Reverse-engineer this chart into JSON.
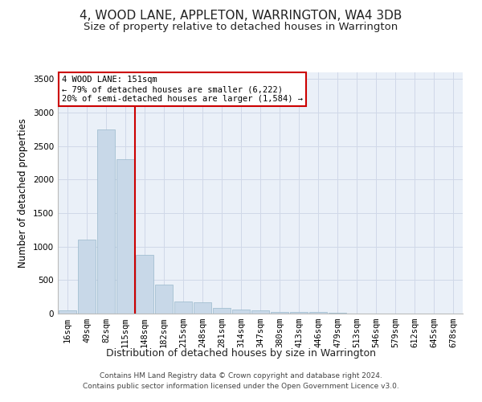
{
  "title": "4, WOOD LANE, APPLETON, WARRINGTON, WA4 3DB",
  "subtitle": "Size of property relative to detached houses in Warrington",
  "xlabel": "Distribution of detached houses by size in Warrington",
  "ylabel": "Number of detached properties",
  "bar_labels": [
    "16sqm",
    "49sqm",
    "82sqm",
    "115sqm",
    "148sqm",
    "182sqm",
    "215sqm",
    "248sqm",
    "281sqm",
    "314sqm",
    "347sqm",
    "380sqm",
    "413sqm",
    "446sqm",
    "479sqm",
    "513sqm",
    "546sqm",
    "579sqm",
    "612sqm",
    "645sqm",
    "678sqm"
  ],
  "bar_values": [
    50,
    1100,
    2750,
    2300,
    880,
    430,
    175,
    165,
    90,
    60,
    50,
    30,
    25,
    20,
    10,
    5,
    5,
    2,
    2,
    1,
    1
  ],
  "bar_color": "#c8d8e8",
  "bar_edgecolor": "#9ab8cc",
  "bar_linewidth": 0.5,
  "vline_index": 4,
  "vline_color": "#cc0000",
  "annotation_line1": "4 WOOD LANE: 151sqm",
  "annotation_line2": "← 79% of detached houses are smaller (6,222)",
  "annotation_line3": "20% of semi-detached houses are larger (1,584) →",
  "annotation_box_color": "#cc0000",
  "ylim": [
    0,
    3600
  ],
  "yticks": [
    0,
    500,
    1000,
    1500,
    2000,
    2500,
    3000,
    3500
  ],
  "grid_color": "#d0d8e8",
  "bg_color": "#eaf0f8",
  "footer_line1": "Contains HM Land Registry data © Crown copyright and database right 2024.",
  "footer_line2": "Contains public sector information licensed under the Open Government Licence v3.0.",
  "title_fontsize": 11,
  "subtitle_fontsize": 9.5,
  "xlabel_fontsize": 9,
  "ylabel_fontsize": 8.5,
  "tick_fontsize": 7.5,
  "footer_fontsize": 6.5
}
